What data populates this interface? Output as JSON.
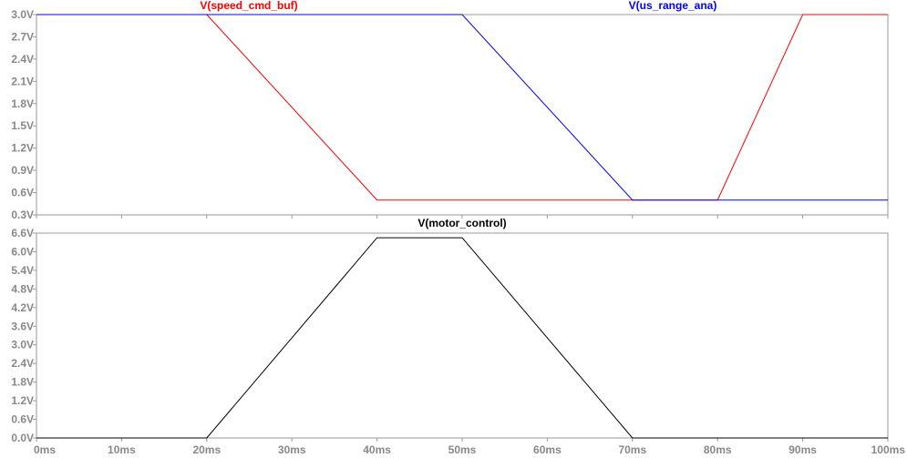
{
  "chart_data": [
    {
      "type": "line",
      "title": "",
      "xlabel": "",
      "ylabel": "",
      "xlim": [
        0,
        100
      ],
      "ylim": [
        0.3,
        3.0
      ],
      "x_ticks": [
        "0ms",
        "10ms",
        "20ms",
        "30ms",
        "40ms",
        "50ms",
        "60ms",
        "70ms",
        "80ms",
        "90ms",
        "100ms"
      ],
      "y_ticks": [
        "0.3V",
        "0.6V",
        "0.9V",
        "1.2V",
        "1.5V",
        "1.8V",
        "2.1V",
        "2.4V",
        "2.7V",
        "3.0V"
      ],
      "grid": false,
      "series": [
        {
          "name": "V(speed_cmd_buf)",
          "color": "#ff0000",
          "x": [
            0,
            20,
            40,
            70,
            80,
            90,
            100
          ],
          "y": [
            3.0,
            3.0,
            0.5,
            0.5,
            0.5,
            3.0,
            3.0
          ]
        },
        {
          "name": "V(us_range_ana)",
          "color": "#0000ff",
          "x": [
            0,
            50,
            70,
            100
          ],
          "y": [
            3.0,
            3.0,
            0.5,
            0.5
          ]
        }
      ]
    },
    {
      "type": "line",
      "title": "",
      "xlabel": "",
      "ylabel": "",
      "xlim": [
        0,
        100
      ],
      "ylim": [
        0.0,
        6.6
      ],
      "x_ticks": [
        "0ms",
        "10ms",
        "20ms",
        "30ms",
        "40ms",
        "50ms",
        "60ms",
        "70ms",
        "80ms",
        "90ms",
        "100ms"
      ],
      "y_ticks": [
        "0.0V",
        "0.6V",
        "1.2V",
        "1.8V",
        "2.4V",
        "3.0V",
        "3.6V",
        "4.2V",
        "4.8V",
        "5.4V",
        "6.0V",
        "6.6V"
      ],
      "grid": false,
      "series": [
        {
          "name": "V(motor_control)",
          "color": "#000000",
          "x": [
            0,
            20,
            40,
            50,
            70,
            100
          ],
          "y": [
            0.0,
            0.0,
            6.45,
            6.45,
            0.0,
            0.0
          ]
        }
      ]
    }
  ]
}
